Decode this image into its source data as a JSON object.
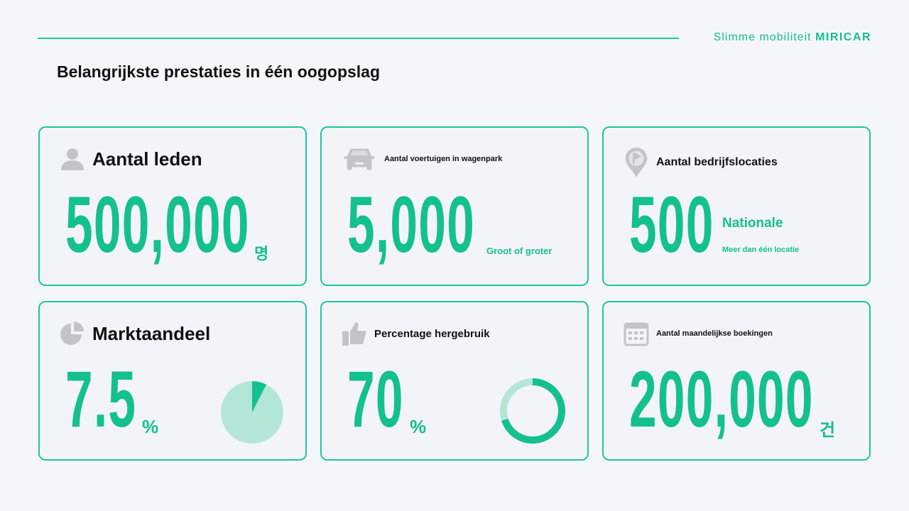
{
  "header": {
    "brand_prefix": "Slimme mobiliteit",
    "brand_name": "MIRICAR",
    "title": "Belangrijkste prestaties in één oogopslag"
  },
  "colors": {
    "accent": "#14c08f",
    "accent_light": "#b3e6d8",
    "border": "#1cc89a",
    "icon": "#c4c4c8"
  },
  "cards": [
    {
      "icon": "person-icon",
      "label": "Aantal leden",
      "value": "500,000",
      "unit": "명"
    },
    {
      "icon": "car-icon",
      "label": "Aantal voertuigen in wagenpark",
      "value": "5,000",
      "unit": "Groot of groter"
    },
    {
      "icon": "location-flag-icon",
      "label": "Aantal bedrijfslocaties",
      "value": "500",
      "unit": "Nationale",
      "sub": "Meer dan één locatie"
    },
    {
      "icon": "pie-chart-icon",
      "label": "Marktaandeel",
      "value": "7.5",
      "unit": "%",
      "percent": 7.5
    },
    {
      "icon": "thumbs-up-icon",
      "label": "Percentage hergebruik",
      "value": "70",
      "unit": "%",
      "percent": 70
    },
    {
      "icon": "calendar-icon",
      "label": "Aantal maandelijkse boekingen",
      "value": "200,000",
      "unit": "건"
    }
  ]
}
